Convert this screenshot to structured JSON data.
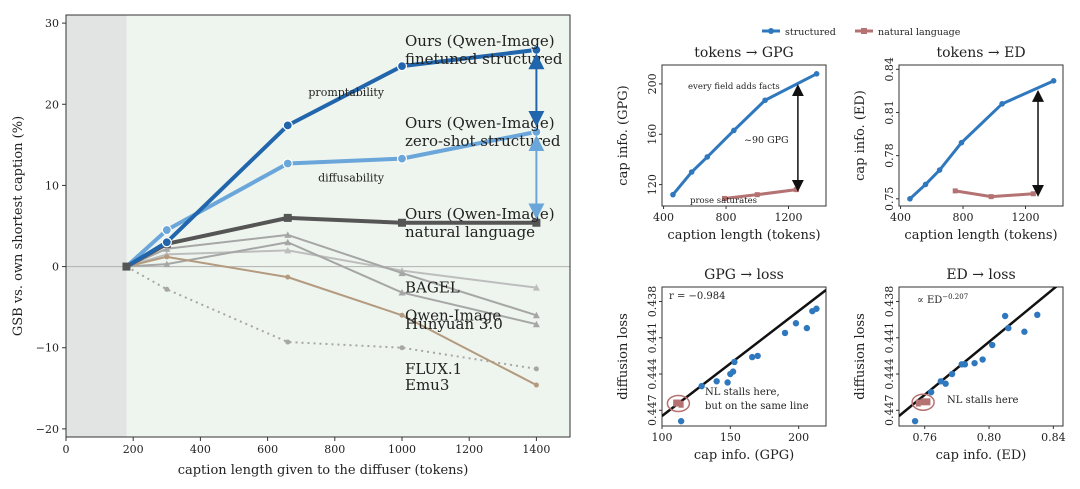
{
  "legend": {
    "structured": "structured",
    "natural_language": "natural language"
  },
  "colors": {
    "dark_blue": "#2166ac",
    "light_blue": "#6aa6da",
    "dark_gray": "#555555",
    "gray": "#a6a6a6",
    "lighter_gray": "#bdbdbd",
    "tan": "#b49a7e",
    "blue_series": "#2f78be",
    "nl_series": "#b57272",
    "panel_bg": "#eef5ee",
    "shade": "#e2e4e4"
  },
  "chart_data": [
    {
      "type": "line",
      "xlabel": "caption length given to the diffuser  (tokens)",
      "ylabel": "GSB vs. own shortest caption  (%)",
      "xlim": [
        0,
        1500
      ],
      "ylim": [
        -21,
        31
      ],
      "xticks": [
        0,
        200,
        400,
        600,
        800,
        1000,
        1200,
        1400
      ],
      "yticks": [
        -20,
        -10,
        0,
        10,
        20,
        30
      ],
      "shaded_region_x": [
        0,
        180
      ],
      "origin_point": [
        180,
        0
      ],
      "series": [
        {
          "name": "Ours (Qwen-Image) finetuned structured",
          "label_lines": [
            "Ours (Qwen-Image)",
            "finetuned structured"
          ],
          "style": "dark_blue",
          "marker": "circle",
          "x": [
            180,
            300,
            660,
            1000,
            1400
          ],
          "y": [
            0,
            3.0,
            17.4,
            24.7,
            26.7
          ]
        },
        {
          "name": "Ours (Qwen-Image) zero-shot structured",
          "label_lines": [
            "Ours (Qwen-Image)",
            "zero-shot structured"
          ],
          "style": "light_blue",
          "marker": "circle",
          "x": [
            180,
            300,
            660,
            1000,
            1400
          ],
          "y": [
            0,
            4.5,
            12.7,
            13.3,
            16.6
          ]
        },
        {
          "name": "Ours (Qwen-Image) natural language",
          "label_lines": [
            "Ours (Qwen-Image)",
            "natural language"
          ],
          "style": "dark_gray",
          "marker": "square",
          "x": [
            180,
            300,
            660,
            1000,
            1400
          ],
          "y": [
            0,
            2.8,
            6.0,
            5.4,
            5.4
          ]
        },
        {
          "name": "BAGEL",
          "label_lines": [
            "BAGEL"
          ],
          "style": "lighter_gray",
          "marker": "triangle",
          "x": [
            180,
            300,
            660,
            1000,
            1400
          ],
          "y": [
            0,
            1.5,
            2.0,
            -0.5,
            -2.6
          ]
        },
        {
          "name": "Qwen-Image",
          "label_lines": [
            "Qwen-Image"
          ],
          "style": "gray",
          "marker": "triangle",
          "x": [
            180,
            300,
            660,
            1000,
            1400
          ],
          "y": [
            0,
            2.2,
            3.9,
            -0.8,
            -6.0
          ]
        },
        {
          "name": "Hunyuan 3.0",
          "label_lines": [
            "Hunyuan 3.0"
          ],
          "style": "gray",
          "marker": "triangle",
          "x": [
            180,
            300,
            660,
            1000,
            1400
          ],
          "y": [
            0,
            0.3,
            3.0,
            -3.2,
            -7.1
          ]
        },
        {
          "name": "FLUX.1",
          "label_lines": [
            "FLUX.1"
          ],
          "style": "gray_dotted",
          "marker": "dot",
          "x": [
            180,
            300,
            660,
            1000,
            1400
          ],
          "y": [
            0,
            -2.8,
            -9.3,
            -10.0,
            -12.6
          ]
        },
        {
          "name": "Emu3",
          "label_lines": [
            "Emu3"
          ],
          "style": "tan",
          "marker": "dot",
          "x": [
            180,
            300,
            660,
            1000,
            1400
          ],
          "y": [
            0,
            1.2,
            -1.3,
            -6.0,
            -14.6
          ]
        }
      ],
      "annotations": [
        {
          "text": "promptability",
          "x": 1010,
          "y": 21.5
        },
        {
          "text": "diffusability",
          "x": 1010,
          "y": 11.0
        }
      ]
    },
    {
      "type": "line",
      "title": "tokens → GPG",
      "xlabel": "caption length  (tokens)",
      "ylabel": "cap info. (GPG)",
      "xlim": [
        390,
        1440
      ],
      "ylim": [
        103,
        215
      ],
      "xticks": [
        400,
        800,
        1200
      ],
      "yticks": [
        120,
        160,
        200
      ],
      "series": [
        {
          "name": "structured",
          "x": [
            460,
            580,
            680,
            850,
            1050,
            1380
          ],
          "y": [
            112,
            130,
            142,
            163,
            187,
            208
          ]
        },
        {
          "name": "natural language",
          "x": [
            790,
            1000,
            1250
          ],
          "y": [
            109,
            112,
            116
          ]
        }
      ],
      "annotations": [
        "every field adds facts",
        "~90 GPG",
        "prose saturates"
      ]
    },
    {
      "type": "line",
      "title": "tokens → ED",
      "xlabel": "caption length  (tokens)",
      "ylabel": "cap info. (ED)",
      "xlim": [
        390,
        1440
      ],
      "ylim": [
        0.745,
        0.843
      ],
      "xticks": [
        400,
        800,
        1200
      ],
      "yticks": [
        0.75,
        0.78,
        0.81,
        0.84
      ],
      "series": [
        {
          "name": "structured",
          "x": [
            460,
            560,
            650,
            790,
            1050,
            1380
          ],
          "y": [
            0.75,
            0.76,
            0.77,
            0.789,
            0.816,
            0.832
          ]
        },
        {
          "name": "natural language",
          "x": [
            750,
            980,
            1250
          ],
          "y": [
            0.7555,
            0.7515,
            0.7535
          ]
        }
      ]
    },
    {
      "type": "scatter",
      "title": "GPG → loss",
      "xlabel": "cap info. (GPG)",
      "ylabel": "diffusion loss",
      "xlim": [
        100,
        220
      ],
      "ylim": [
        0.4483,
        0.4368
      ],
      "xticks": [
        100,
        150,
        200
      ],
      "yticks": [
        0.438,
        0.441,
        0.444,
        0.447
      ],
      "annotations": [
        "r = −0.984",
        "NL stalls here,",
        "but on the same line"
      ],
      "points": [
        [
          114,
          0.4479
        ],
        [
          129,
          0.445
        ],
        [
          140,
          0.4446
        ],
        [
          148,
          0.4447
        ],
        [
          150,
          0.444
        ],
        [
          152,
          0.4438
        ],
        [
          153,
          0.443
        ],
        [
          166,
          0.4426
        ],
        [
          170,
          0.4425
        ],
        [
          190,
          0.4406
        ],
        [
          198,
          0.4398
        ],
        [
          206,
          0.4402
        ],
        [
          210,
          0.4388
        ],
        [
          213,
          0.4386
        ]
      ],
      "nl_points": [
        [
          110,
          0.4464
        ],
        [
          112,
          0.4464
        ],
        [
          114,
          0.4465
        ]
      ]
    },
    {
      "type": "scatter",
      "title": "ED → loss",
      "xlabel": "cap info. (ED)",
      "ylabel": "diffusion loss",
      "xlim": [
        0.744,
        0.846
      ],
      "ylim": [
        0.4483,
        0.4368
      ],
      "xticks": [
        0.76,
        0.8,
        0.84
      ],
      "yticks": [
        0.438,
        0.441,
        0.444,
        0.447
      ],
      "annotations": [
        "∝ ED^−0.207"
      ],
      "points": [
        [
          0.754,
          0.4479
        ],
        [
          0.764,
          0.4455
        ],
        [
          0.77,
          0.4446
        ],
        [
          0.773,
          0.4448
        ],
        [
          0.777,
          0.444
        ],
        [
          0.783,
          0.4432
        ],
        [
          0.785,
          0.4432
        ],
        [
          0.791,
          0.4431
        ],
        [
          0.796,
          0.4428
        ],
        [
          0.802,
          0.4416
        ],
        [
          0.81,
          0.4392
        ],
        [
          0.812,
          0.4402
        ],
        [
          0.822,
          0.4405
        ],
        [
          0.83,
          0.4391
        ]
      ],
      "nl_points": [
        [
          0.756,
          0.4464
        ],
        [
          0.759,
          0.4463
        ],
        [
          0.762,
          0.4463
        ]
      ]
    }
  ]
}
